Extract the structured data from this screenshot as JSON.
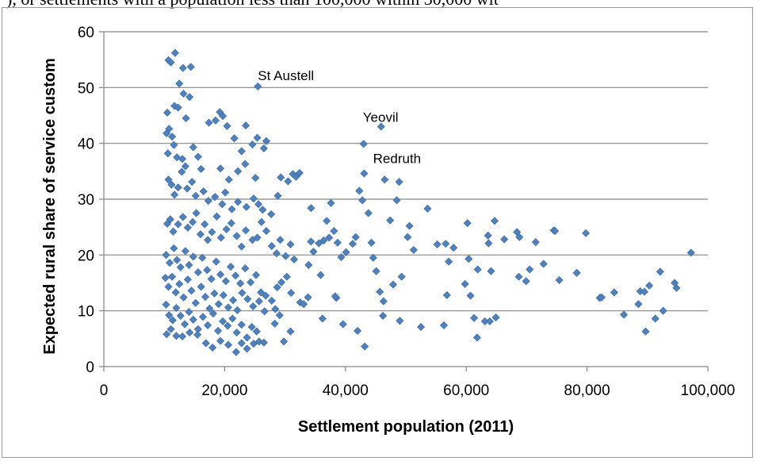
{
  "caption_fragment": "), or settlements with a population less than 100,000 within 30,000 wit",
  "colors": {
    "marker": "#4f81bd",
    "marker_stroke": "#3b679e",
    "gridline": "#868686",
    "axis": "#868686",
    "text": "#000000"
  },
  "chart_data": {
    "type": "scatter",
    "xlabel": "Settlement population (2011)",
    "ylabel": "Expected rural share of service custom",
    "xlim": [
      0,
      100000
    ],
    "ylim": [
      0,
      60
    ],
    "x_ticks": [
      0,
      20000,
      40000,
      60000,
      80000,
      100000
    ],
    "x_tick_labels": [
      "0",
      "20,000",
      "40,000",
      "60,000",
      "80,000",
      "100,000"
    ],
    "y_ticks": [
      0,
      10,
      20,
      30,
      40,
      50,
      60
    ],
    "y_tick_labels": [
      "0",
      "10",
      "20",
      "30",
      "40",
      "50",
      "60"
    ],
    "grid": "horizontal",
    "legend": "none",
    "marker": "diamond",
    "annotations": [
      {
        "label": "St Austell",
        "x": 25500,
        "y": 50.2
      },
      {
        "label": "Yeovil",
        "x": 45900,
        "y": 43
      },
      {
        "label": "Redruth",
        "x": 43000,
        "y": 39.9
      }
    ],
    "points": [
      [
        10700,
        54.9
      ],
      [
        11100,
        54.5
      ],
      [
        11800,
        56.2
      ],
      [
        12500,
        50.7
      ],
      [
        13100,
        53.5
      ],
      [
        14400,
        53.7
      ],
      [
        10500,
        45.5
      ],
      [
        11700,
        46.7
      ],
      [
        12300,
        46.4
      ],
      [
        13200,
        48.9
      ],
      [
        14200,
        48.3
      ],
      [
        13600,
        44.5
      ],
      [
        10400,
        41.8
      ],
      [
        10800,
        42.6
      ],
      [
        11300,
        41.2
      ],
      [
        11600,
        39.7
      ],
      [
        12100,
        37.5
      ],
      [
        10600,
        38.2
      ],
      [
        13000,
        37.2
      ],
      [
        13500,
        35.9
      ],
      [
        14800,
        39.3
      ],
      [
        15600,
        37.6
      ],
      [
        16100,
        35.4
      ],
      [
        17400,
        43.7
      ],
      [
        18500,
        44.1
      ],
      [
        19200,
        45.6
      ],
      [
        19700,
        44.9
      ],
      [
        20400,
        43.1
      ],
      [
        21600,
        40.9
      ],
      [
        22800,
        38.6
      ],
      [
        23500,
        43.2
      ],
      [
        24600,
        39.8
      ],
      [
        25400,
        41
      ],
      [
        26500,
        39.1
      ],
      [
        26900,
        40.4
      ],
      [
        25100,
        33.8
      ],
      [
        23400,
        36.3
      ],
      [
        22200,
        35
      ],
      [
        20700,
        33.5
      ],
      [
        19300,
        35.5
      ],
      [
        10700,
        33.5
      ],
      [
        11200,
        32.6
      ],
      [
        11700,
        30.8
      ],
      [
        12300,
        32.1
      ],
      [
        12900,
        34.9
      ],
      [
        13800,
        31.9
      ],
      [
        14600,
        33.1
      ],
      [
        15200,
        30.6
      ],
      [
        16500,
        31.4
      ],
      [
        17300,
        29.7
      ],
      [
        18400,
        30.4
      ],
      [
        19600,
        29.1
      ],
      [
        20100,
        31.2
      ],
      [
        21200,
        28.2
      ],
      [
        22200,
        29.5
      ],
      [
        23600,
        28.6
      ],
      [
        24800,
        30.1
      ],
      [
        25600,
        29.1
      ],
      [
        26300,
        28.1
      ],
      [
        27700,
        27.3
      ],
      [
        28800,
        30.6
      ],
      [
        29300,
        33.9
      ],
      [
        30500,
        33.2
      ],
      [
        31300,
        34.5
      ],
      [
        31800,
        34
      ],
      [
        32400,
        34.7
      ],
      [
        10500,
        25.6
      ],
      [
        11000,
        26.4
      ],
      [
        11500,
        24.2
      ],
      [
        12300,
        25.5
      ],
      [
        13100,
        26.8
      ],
      [
        13900,
        24.9
      ],
      [
        14700,
        25.9
      ],
      [
        15300,
        27.5
      ],
      [
        16000,
        23.7
      ],
      [
        16700,
        25.5
      ],
      [
        17200,
        22.7
      ],
      [
        17900,
        24.1
      ],
      [
        18700,
        26.9
      ],
      [
        19400,
        23.1
      ],
      [
        20300,
        24.6
      ],
      [
        21100,
        25.7
      ],
      [
        22000,
        23.4
      ],
      [
        22800,
        21.5
      ],
      [
        23500,
        24.4
      ],
      [
        24600,
        22.7
      ],
      [
        25400,
        23.1
      ],
      [
        26100,
        25.9
      ],
      [
        26900,
        24.3
      ],
      [
        27800,
        21.6
      ],
      [
        28600,
        20.3
      ],
      [
        29200,
        22.7
      ],
      [
        30100,
        19.8
      ],
      [
        30900,
        21.9
      ],
      [
        31500,
        19.2
      ],
      [
        10300,
        20
      ],
      [
        10900,
        18.6
      ],
      [
        11600,
        21.2
      ],
      [
        12100,
        19.1
      ],
      [
        12700,
        17.8
      ],
      [
        13500,
        20.7
      ],
      [
        14100,
        18.2
      ],
      [
        14800,
        19.7
      ],
      [
        15600,
        16.9
      ],
      [
        16300,
        19.5
      ],
      [
        17100,
        17.3
      ],
      [
        17800,
        15.7
      ],
      [
        18600,
        18.8
      ],
      [
        19300,
        16.5
      ],
      [
        20200,
        15.3
      ],
      [
        21000,
        17.9
      ],
      [
        21800,
        16.3
      ],
      [
        22600,
        14.9
      ],
      [
        23400,
        17.6
      ],
      [
        24300,
        15.1
      ],
      [
        25200,
        16.4
      ],
      [
        26000,
        13.3
      ],
      [
        26800,
        12.7
      ],
      [
        27800,
        11.8
      ],
      [
        28700,
        14.2
      ],
      [
        29400,
        15.1
      ],
      [
        30300,
        16.1
      ],
      [
        31000,
        13.2
      ],
      [
        10200,
        15.9
      ],
      [
        10700,
        14.3
      ],
      [
        11300,
        16.1
      ],
      [
        11900,
        13.3
      ],
      [
        12500,
        14.8
      ],
      [
        13200,
        12.4
      ],
      [
        13900,
        15.6
      ],
      [
        14500,
        13.6
      ],
      [
        15200,
        11.4
      ],
      [
        16100,
        14.3
      ],
      [
        16800,
        12.5
      ],
      [
        17500,
        10.4
      ],
      [
        18300,
        13.1
      ],
      [
        19000,
        11.2
      ],
      [
        19800,
        12.8
      ],
      [
        20600,
        10.6
      ],
      [
        21400,
        11.9
      ],
      [
        22100,
        10.1
      ],
      [
        22900,
        13.2
      ],
      [
        23800,
        12.1
      ],
      [
        24700,
        10.8
      ],
      [
        25700,
        11.7
      ],
      [
        26600,
        9.9
      ],
      [
        28400,
        10.3
      ],
      [
        29100,
        9.2
      ],
      [
        10300,
        11.1
      ],
      [
        10800,
        9.2
      ],
      [
        11400,
        8.3
      ],
      [
        12000,
        10.5
      ],
      [
        12700,
        9.1
      ],
      [
        13400,
        7.6
      ],
      [
        14100,
        9.8
      ],
      [
        14800,
        8.4
      ],
      [
        15600,
        6.7
      ],
      [
        16400,
        8.9
      ],
      [
        17200,
        7.4
      ],
      [
        18100,
        9.5
      ],
      [
        18900,
        6.4
      ],
      [
        19700,
        8.1
      ],
      [
        20500,
        7.3
      ],
      [
        21300,
        8.6
      ],
      [
        22000,
        6.1
      ],
      [
        22800,
        7.5
      ],
      [
        23700,
        5.2
      ],
      [
        24500,
        7.1
      ],
      [
        25300,
        6.3
      ],
      [
        10400,
        5.8
      ],
      [
        11100,
        6.7
      ],
      [
        12000,
        5.5
      ],
      [
        13000,
        5.4
      ],
      [
        14200,
        6.1
      ],
      [
        15500,
        5.7
      ],
      [
        16900,
        4.2
      ],
      [
        18000,
        3.4
      ],
      [
        19300,
        4.6
      ],
      [
        20600,
        3.9
      ],
      [
        21900,
        2.6
      ],
      [
        22800,
        4.2
      ],
      [
        23700,
        3.2
      ],
      [
        24800,
        4.1
      ],
      [
        25700,
        4.5
      ],
      [
        26500,
        4.3
      ],
      [
        28300,
        7.7
      ],
      [
        29800,
        4.5
      ],
      [
        30900,
        6.3
      ],
      [
        32500,
        11.5
      ],
      [
        33100,
        11.2
      ],
      [
        33900,
        18.2
      ],
      [
        34300,
        22.4
      ],
      [
        34700,
        20.6
      ],
      [
        35600,
        22.1
      ],
      [
        35900,
        16.4
      ],
      [
        36400,
        22.6
      ],
      [
        36900,
        26.1
      ],
      [
        37300,
        23.1
      ],
      [
        37600,
        29.3
      ],
      [
        38100,
        24.3
      ],
      [
        38700,
        22.2
      ],
      [
        39300,
        19.6
      ],
      [
        33800,
        12.4
      ],
      [
        34300,
        28.4
      ],
      [
        36200,
        8.6
      ],
      [
        38500,
        12.3
      ],
      [
        38300,
        12.6
      ],
      [
        39600,
        7.6
      ],
      [
        40100,
        20.5
      ],
      [
        41200,
        22
      ],
      [
        41700,
        23.2
      ],
      [
        42300,
        31.5
      ],
      [
        42800,
        29.8
      ],
      [
        43100,
        34.6
      ],
      [
        43800,
        27.5
      ],
      [
        44300,
        22.2
      ],
      [
        44600,
        19.5
      ],
      [
        45100,
        17.1
      ],
      [
        45700,
        13.4
      ],
      [
        46300,
        11.7
      ],
      [
        46500,
        33.5
      ],
      [
        47400,
        26.2
      ],
      [
        47900,
        14.7
      ],
      [
        48500,
        29.8
      ],
      [
        48900,
        33.1
      ],
      [
        49300,
        16.1
      ],
      [
        50300,
        23.2
      ],
      [
        50600,
        25.2
      ],
      [
        51300,
        20.9
      ],
      [
        53600,
        28.3
      ],
      [
        55200,
        21.9
      ],
      [
        56600,
        22
      ],
      [
        57100,
        18.8
      ],
      [
        57900,
        21.3
      ],
      [
        42000,
        6.4
      ],
      [
        43200,
        3.6
      ],
      [
        46200,
        9.1
      ],
      [
        49000,
        8.2
      ],
      [
        52500,
        7.1
      ],
      [
        56300,
        7.4
      ],
      [
        56800,
        12.8
      ],
      [
        59800,
        14.8
      ],
      [
        60200,
        25.7
      ],
      [
        60400,
        19.3
      ],
      [
        60700,
        12.7
      ],
      [
        61300,
        8.7
      ],
      [
        61800,
        5.2
      ],
      [
        61900,
        17.4
      ],
      [
        63100,
        8.1
      ],
      [
        63600,
        23.5
      ],
      [
        63700,
        22.1
      ],
      [
        63900,
        8.1
      ],
      [
        64100,
        17.1
      ],
      [
        64700,
        26.1
      ],
      [
        64900,
        8.8
      ],
      [
        66300,
        22.8
      ],
      [
        68400,
        24.1
      ],
      [
        68800,
        23.2
      ],
      [
        68700,
        16.1
      ],
      [
        69900,
        15.3
      ],
      [
        70500,
        17.4
      ],
      [
        71500,
        22.3
      ],
      [
        72800,
        18.4
      ],
      [
        74500,
        24.4
      ],
      [
        74700,
        24.3
      ],
      [
        75400,
        15.5
      ],
      [
        78300,
        16.8
      ],
      [
        79800,
        23.9
      ],
      [
        82100,
        12.3
      ],
      [
        82400,
        12.4
      ],
      [
        84500,
        13.3
      ],
      [
        86100,
        9.3
      ],
      [
        88500,
        11.2
      ],
      [
        88800,
        13.5
      ],
      [
        89700,
        6.3
      ],
      [
        89500,
        13.4
      ],
      [
        90300,
        14.5
      ],
      [
        91300,
        8.6
      ],
      [
        92100,
        17
      ],
      [
        92600,
        10
      ],
      [
        94500,
        15
      ],
      [
        94800,
        14.1
      ],
      [
        97200,
        20.4
      ]
    ]
  }
}
